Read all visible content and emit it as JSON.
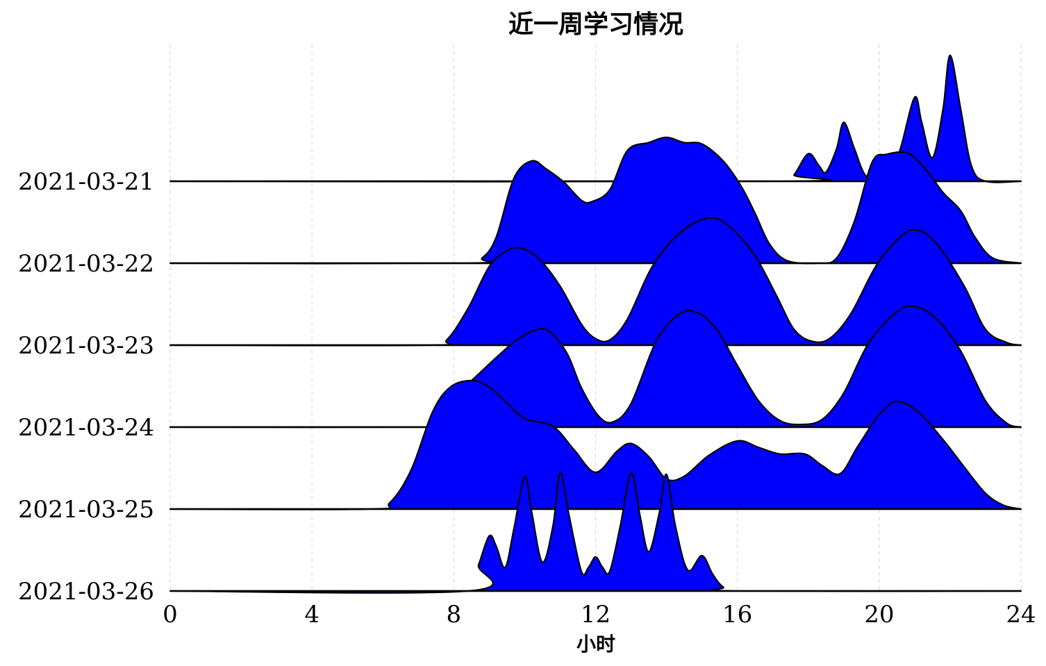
{
  "chart_data": {
    "type": "area",
    "title": "近一周学习情况",
    "xlabel": "小时",
    "ylabel": "",
    "xlim": [
      0,
      24
    ],
    "x_ticks": [
      "0",
      "4",
      "8",
      "12",
      "16",
      "20",
      "24"
    ],
    "x_tick_values": [
      0,
      4,
      8,
      12,
      16,
      20,
      24
    ],
    "grid": "vertical-dashed",
    "fill_color": "#0000ff",
    "line_color": "#000000",
    "series": [
      {
        "label": "2021-03-21",
        "points": [
          [
            0,
            0
          ],
          [
            17.3,
            0
          ],
          [
            17.6,
            0.05
          ],
          [
            18.0,
            0.21
          ],
          [
            18.3,
            0.12
          ],
          [
            18.5,
            0.07
          ],
          [
            18.8,
            0.25
          ],
          [
            19.0,
            0.45
          ],
          [
            19.3,
            0.25
          ],
          [
            19.6,
            0.05
          ],
          [
            20.0,
            0
          ],
          [
            20.3,
            0.05
          ],
          [
            20.6,
            0.25
          ],
          [
            21.0,
            0.64
          ],
          [
            21.2,
            0.45
          ],
          [
            21.5,
            0.18
          ],
          [
            21.8,
            0.55
          ],
          [
            22.0,
            0.96
          ],
          [
            22.3,
            0.55
          ],
          [
            22.6,
            0.12
          ],
          [
            23.0,
            0
          ],
          [
            24,
            0
          ]
        ]
      },
      {
        "label": "2021-03-22",
        "points": [
          [
            0,
            0
          ],
          [
            8.3,
            0
          ],
          [
            8.8,
            0.04
          ],
          [
            9.2,
            0.2
          ],
          [
            9.7,
            0.65
          ],
          [
            10.2,
            0.78
          ],
          [
            10.6,
            0.72
          ],
          [
            11.1,
            0.62
          ],
          [
            11.6,
            0.48
          ],
          [
            11.9,
            0.47
          ],
          [
            12.4,
            0.56
          ],
          [
            12.9,
            0.86
          ],
          [
            13.5,
            0.92
          ],
          [
            14.0,
            0.96
          ],
          [
            14.5,
            0.92
          ],
          [
            15.0,
            0.91
          ],
          [
            15.6,
            0.78
          ],
          [
            16.1,
            0.59
          ],
          [
            16.5,
            0.38
          ],
          [
            16.9,
            0.15
          ],
          [
            17.4,
            0.02
          ],
          [
            18.3,
            0
          ],
          [
            18.8,
            0.04
          ],
          [
            19.3,
            0.32
          ],
          [
            19.8,
            0.77
          ],
          [
            20.2,
            0.83
          ],
          [
            20.8,
            0.84
          ],
          [
            21.3,
            0.72
          ],
          [
            21.8,
            0.54
          ],
          [
            22.3,
            0.4
          ],
          [
            22.7,
            0.2
          ],
          [
            23.2,
            0.04
          ],
          [
            24,
            0
          ]
        ]
      },
      {
        "label": "2021-03-23",
        "points": [
          [
            0,
            0
          ],
          [
            7.3,
            0
          ],
          [
            7.8,
            0.04
          ],
          [
            8.4,
            0.28
          ],
          [
            9.0,
            0.6
          ],
          [
            9.5,
            0.72
          ],
          [
            9.9,
            0.74
          ],
          [
            10.4,
            0.66
          ],
          [
            11.0,
            0.45
          ],
          [
            11.6,
            0.16
          ],
          [
            12.0,
            0.05
          ],
          [
            12.4,
            0.04
          ],
          [
            12.9,
            0.2
          ],
          [
            13.6,
            0.6
          ],
          [
            14.4,
            0.86
          ],
          [
            15.2,
            0.97
          ],
          [
            15.8,
            0.9
          ],
          [
            16.5,
            0.68
          ],
          [
            17.1,
            0.38
          ],
          [
            17.6,
            0.12
          ],
          [
            18.1,
            0.03
          ],
          [
            18.6,
            0.05
          ],
          [
            19.2,
            0.24
          ],
          [
            19.9,
            0.6
          ],
          [
            20.5,
            0.8
          ],
          [
            21.0,
            0.88
          ],
          [
            21.6,
            0.78
          ],
          [
            22.4,
            0.45
          ],
          [
            23.0,
            0.12
          ],
          [
            23.6,
            0.02
          ],
          [
            24,
            0
          ]
        ]
      },
      {
        "label": "2021-03-24",
        "points": [
          [
            0,
            0
          ],
          [
            7.5,
            0
          ],
          [
            7.6,
            0.02
          ],
          [
            7.8,
            0.1
          ],
          [
            8.2,
            0.27
          ],
          [
            8.8,
            0.43
          ],
          [
            9.4,
            0.58
          ],
          [
            9.8,
            0.67
          ],
          [
            10.3,
            0.74
          ],
          [
            10.7,
            0.73
          ],
          [
            11.2,
            0.56
          ],
          [
            11.6,
            0.3
          ],
          [
            12.1,
            0.08
          ],
          [
            12.5,
            0.04
          ],
          [
            13.0,
            0.18
          ],
          [
            13.7,
            0.65
          ],
          [
            14.3,
            0.85
          ],
          [
            14.8,
            0.88
          ],
          [
            15.4,
            0.75
          ],
          [
            16.0,
            0.47
          ],
          [
            16.6,
            0.2
          ],
          [
            17.2,
            0.05
          ],
          [
            17.8,
            0.02
          ],
          [
            18.4,
            0.06
          ],
          [
            19.0,
            0.26
          ],
          [
            19.7,
            0.64
          ],
          [
            20.5,
            0.88
          ],
          [
            21.0,
            0.92
          ],
          [
            21.6,
            0.83
          ],
          [
            22.3,
            0.58
          ],
          [
            23.0,
            0.2
          ],
          [
            23.6,
            0.03
          ],
          [
            24,
            0
          ]
        ]
      },
      {
        "label": "2021-03-25",
        "points": [
          [
            0,
            0
          ],
          [
            5.6,
            0
          ],
          [
            6.2,
            0.05
          ],
          [
            6.8,
            0.3
          ],
          [
            7.4,
            0.74
          ],
          [
            7.9,
            0.93
          ],
          [
            8.5,
            0.98
          ],
          [
            9.0,
            0.93
          ],
          [
            9.5,
            0.81
          ],
          [
            10.0,
            0.69
          ],
          [
            10.8,
            0.63
          ],
          [
            11.4,
            0.45
          ],
          [
            12.0,
            0.28
          ],
          [
            12.6,
            0.44
          ],
          [
            13.0,
            0.5
          ],
          [
            13.5,
            0.4
          ],
          [
            14.0,
            0.23
          ],
          [
            14.5,
            0.25
          ],
          [
            15.2,
            0.41
          ],
          [
            16.0,
            0.52
          ],
          [
            16.6,
            0.47
          ],
          [
            17.2,
            0.42
          ],
          [
            17.9,
            0.42
          ],
          [
            18.4,
            0.33
          ],
          [
            18.9,
            0.27
          ],
          [
            19.4,
            0.48
          ],
          [
            20.0,
            0.72
          ],
          [
            20.5,
            0.82
          ],
          [
            21.1,
            0.74
          ],
          [
            21.8,
            0.53
          ],
          [
            22.4,
            0.32
          ],
          [
            23.0,
            0.12
          ],
          [
            23.5,
            0.03
          ],
          [
            24,
            0
          ]
        ]
      },
      {
        "label": "2021-03-26",
        "points": [
          [
            0,
            0
          ],
          [
            8.4,
            0
          ],
          [
            8.7,
            0.2
          ],
          [
            9.0,
            0.42
          ],
          [
            9.2,
            0.34
          ],
          [
            9.45,
            0.18
          ],
          [
            9.7,
            0.48
          ],
          [
            10.0,
            0.87
          ],
          [
            10.2,
            0.6
          ],
          [
            10.5,
            0.22
          ],
          [
            10.8,
            0.5
          ],
          [
            11.0,
            0.9
          ],
          [
            11.25,
            0.58
          ],
          [
            11.6,
            0.15
          ],
          [
            11.8,
            0.18
          ],
          [
            12.0,
            0.26
          ],
          [
            12.2,
            0.18
          ],
          [
            12.4,
            0.15
          ],
          [
            12.7,
            0.5
          ],
          [
            13.0,
            0.9
          ],
          [
            13.25,
            0.58
          ],
          [
            13.5,
            0.3
          ],
          [
            13.8,
            0.6
          ],
          [
            14.0,
            0.89
          ],
          [
            14.25,
            0.5
          ],
          [
            14.6,
            0.16
          ],
          [
            15.0,
            0.27
          ],
          [
            15.3,
            0.13
          ],
          [
            15.6,
            0.03
          ],
          [
            16.0,
            0
          ],
          [
            24,
            0
          ]
        ]
      }
    ],
    "value_note": "ridge heights are relative densities; each ridge's scale unit equals the spacing between date rows"
  }
}
